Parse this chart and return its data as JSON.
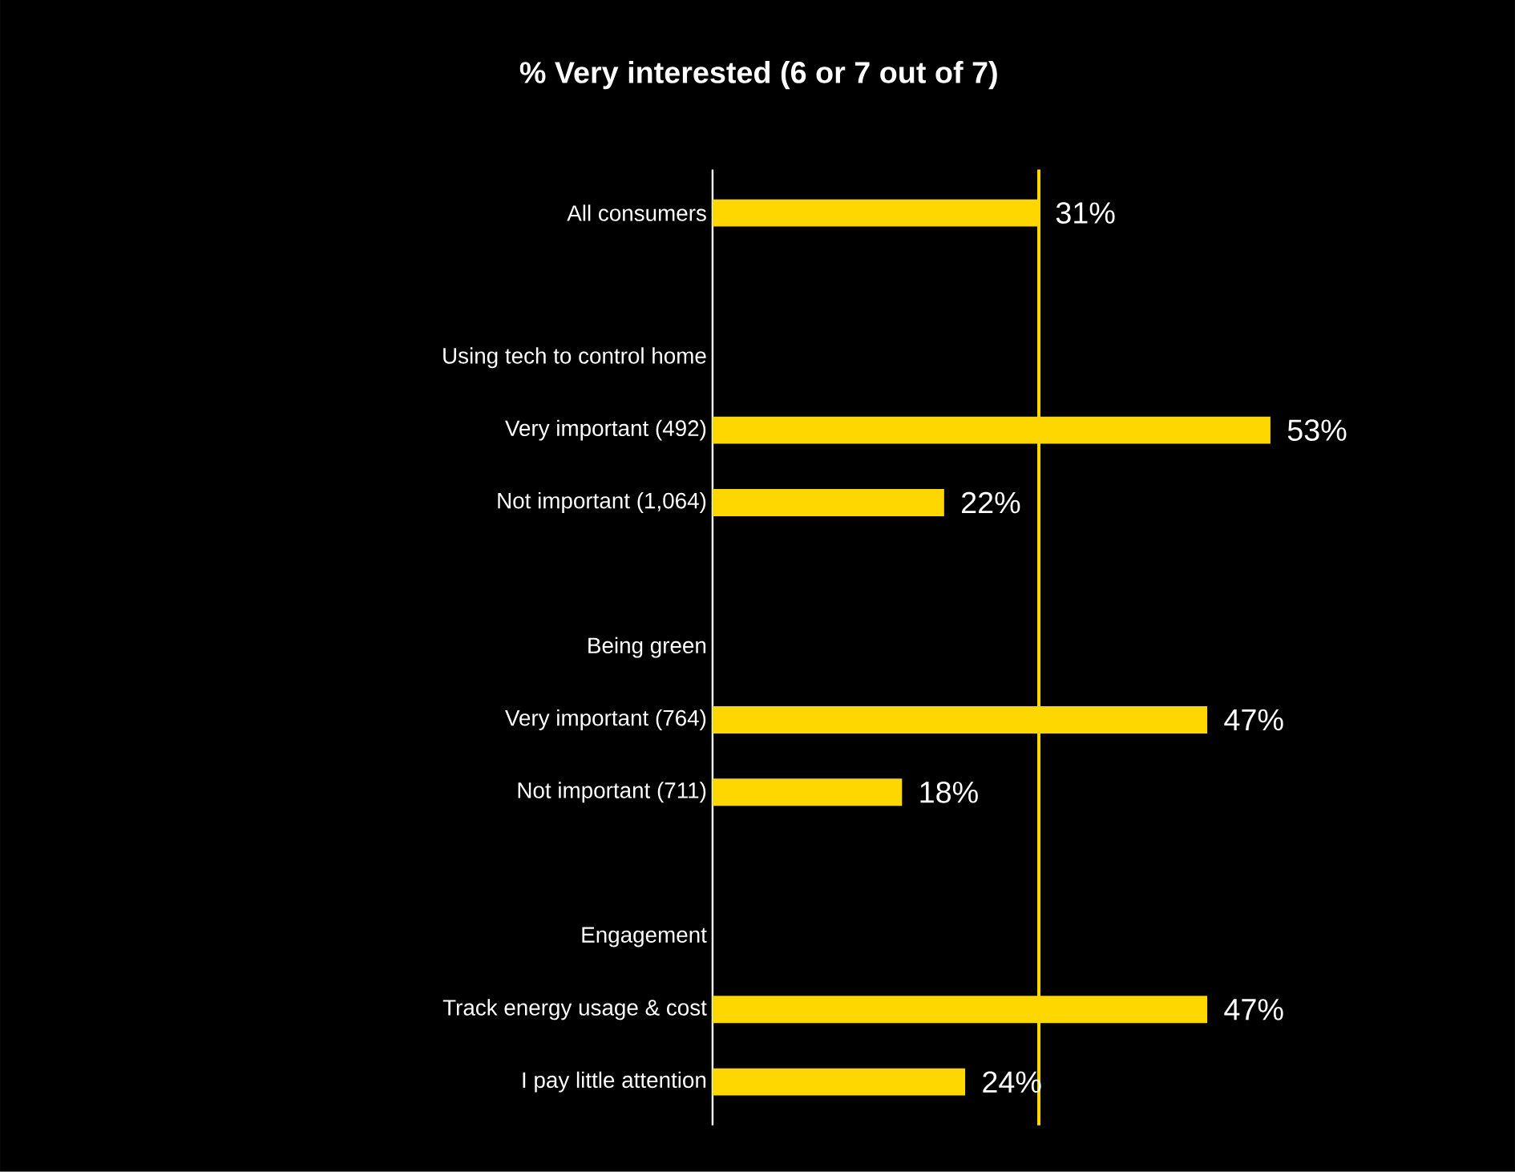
{
  "chart_data": {
    "type": "bar",
    "orientation": "horizontal",
    "title": "% Very interested (6 or 7 out of 7)",
    "categories": [
      "All consumers",
      null,
      "Using tech to control home",
      "Very important (492)",
      "Not important (1,064)",
      null,
      "Being green",
      "Very important (764)",
      "Not important (711)",
      null,
      "Engagement",
      "Track energy usage & cost",
      "I pay little attention"
    ],
    "values": [
      31,
      null,
      null,
      53,
      22,
      null,
      null,
      47,
      18,
      null,
      null,
      47,
      24
    ],
    "value_labels": [
      "31%",
      null,
      null,
      "53%",
      "22%",
      null,
      null,
      "47%",
      "18%",
      null,
      null,
      "47%",
      "24%"
    ],
    "color": "#ffd700",
    "tick_labels": "y",
    "ref_lines": [
      {
        "axis": "x",
        "value": 31,
        "color": "#ffd700"
      }
    ]
  }
}
